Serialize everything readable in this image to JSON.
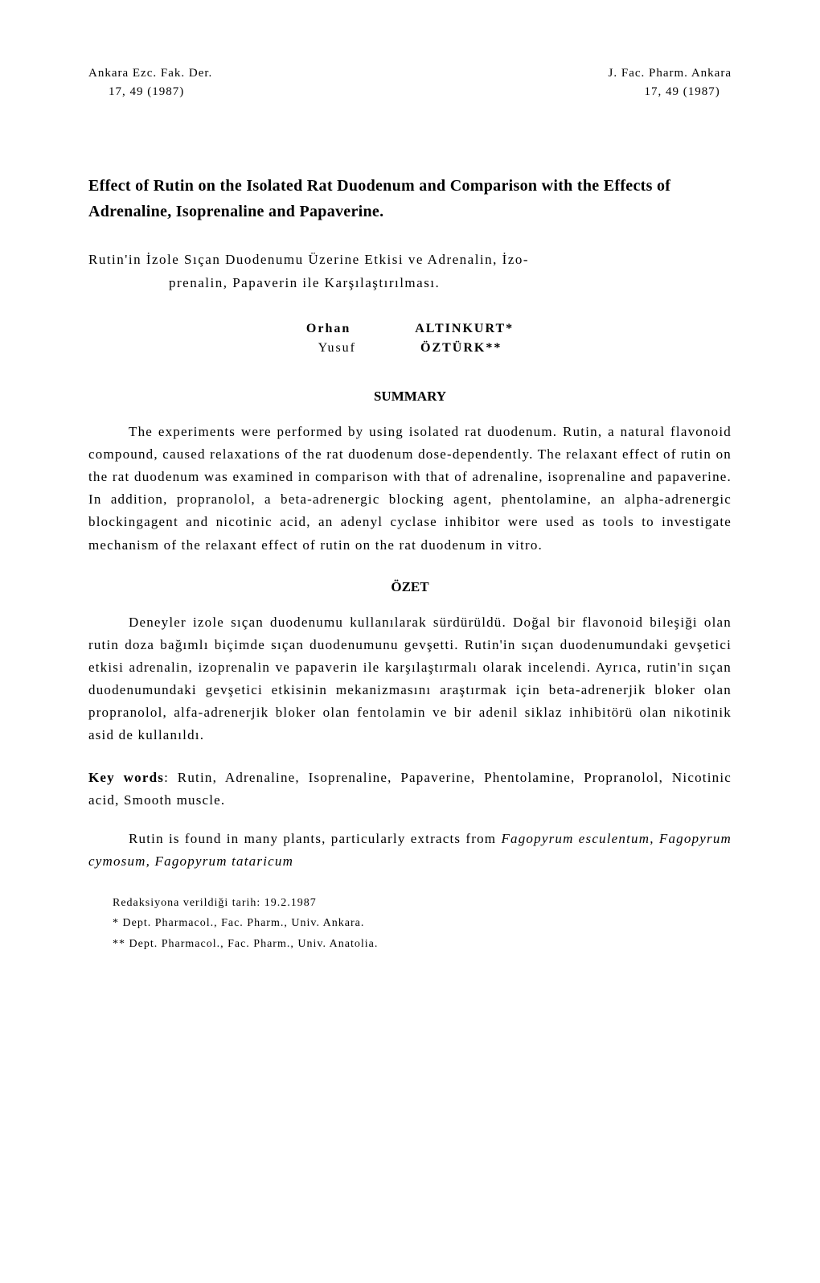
{
  "header": {
    "left_line1": "Ankara Ezc. Fak. Der.",
    "left_line2": "17, 49 (1987)",
    "right_line1": "J. Fac. Pharm. Ankara",
    "right_line2": "17, 49 (1987)"
  },
  "title": "Effect of Rutin on the Isolated Rat Duodenum and Comparison with the Effects of Adrenaline, Isoprenaline and Papaverine.",
  "subtitle_line1": "Rutin'in İzole Sıçan Duodenumu Üzerine Etkisi ve Adrenalin, İzo-",
  "subtitle_line2": "prenalin, Papaverin ile Karşılaştırılması.",
  "authors": {
    "author1_first": "Orhan ",
    "author1_last": "ALTINKURT*",
    "author2_first": "Yusuf ",
    "author2_last": "ÖZTÜRK**"
  },
  "summary_heading": "SUMMARY",
  "summary_text": "The experiments were performed by using isolated rat duodenum. Rutin, a natural flavonoid compound, caused relaxations of the rat duodenum dose-dependently. The relaxant effect of rutin on the rat duodenum was examined in comparison with that of adrenaline, isoprenaline and papaverine. In addition, propranolol, a beta-adrenergic blocking agent, phentolamine, an alpha-adrenergic blockingagent and nicotinic acid, an adenyl cyclase inhibitor were used as tools to investigate mechanism of the relaxant effect of rutin on the rat duodenum in vitro.",
  "ozet_heading": "ÖZET",
  "ozet_text": "Deneyler izole sıçan duodenumu kullanılarak sürdürüldü. Doğal bir flavonoid bileşiği olan rutin doza bağımlı biçimde sıçan duodenumunu gevşetti. Rutin'in sıçan duodenumundaki gevşetici etkisi adrenalin, izoprenalin ve papaverin ile karşılaştırmalı olarak incelendi. Ayrıca, rutin'in sıçan duodenumundaki gevşetici etkisinin mekanizmasını araştırmak için beta-adrenerjik bloker olan propranolol, alfa-adrenerjik bloker olan fentolamin ve bir adenil siklaz inhibitörü olan nikotinik asid de kullanıldı.",
  "keywords_label": "Key words",
  "keywords_text": ": Rutin, Adrenaline, Isoprenaline, Papaverine, Phentolamine, Propranolol, Nicotinic acid, Smooth muscle.",
  "intro_pre": "Rutin is found in many plants, particularly extracts from ",
  "intro_italic": "Fagopyrum esculentum, Fagopyrum cymosum, Fagopyrum tataricum",
  "footnotes": {
    "date": "Redaksiyona verildiği tarih: 19.2.1987",
    "note1": "* Dept. Pharmacol., Fac. Pharm., Univ. Ankara.",
    "note2": "** Dept. Pharmacol., Fac. Pharm., Univ. Anatolia."
  }
}
